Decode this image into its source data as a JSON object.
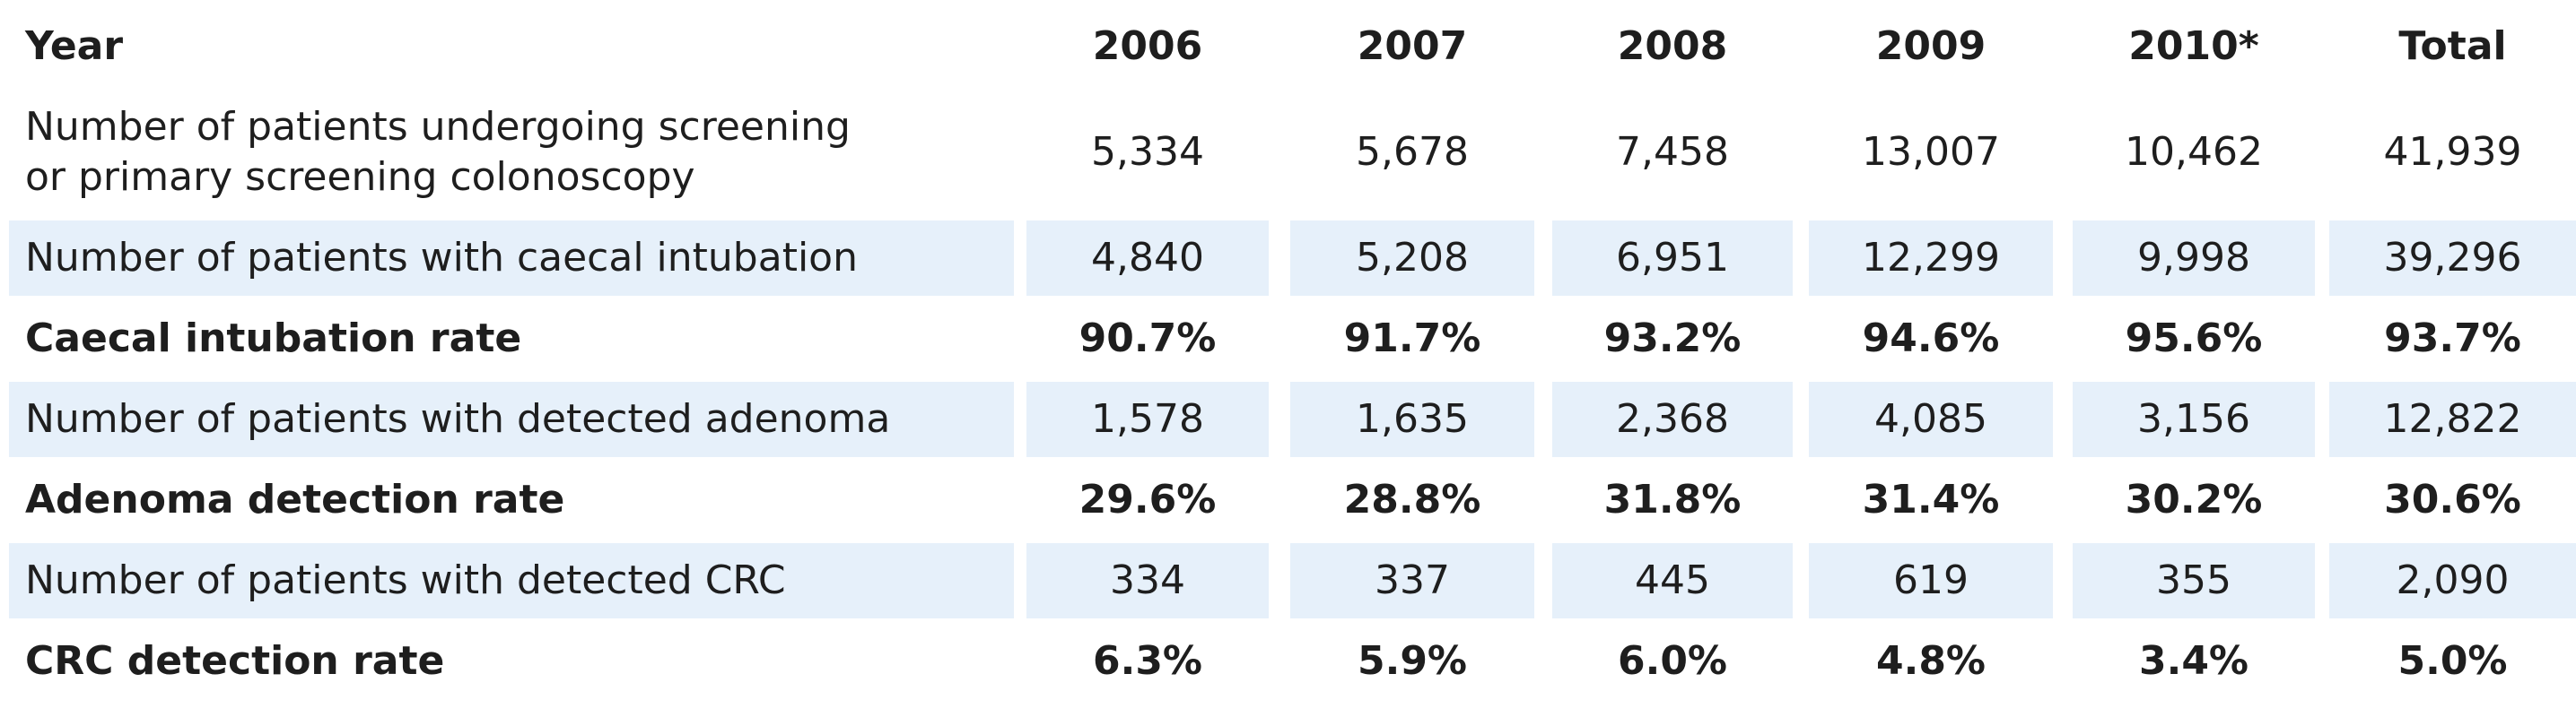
{
  "table": {
    "header": {
      "label": "Year",
      "years": [
        "2006",
        "2007",
        "2008",
        "2009",
        "2010*",
        "Total"
      ]
    },
    "rows": [
      {
        "label": "Number of patients undergoing screening\nor primary screening colonoscopy",
        "values": [
          "5,334",
          "5,678",
          "7,458",
          "13,007",
          "10,462",
          "41,939"
        ]
      },
      {
        "label": "Number of patients with caecal intubation",
        "values": [
          "4,840",
          "5,208",
          "6,951",
          "12,299",
          "9,998",
          "39,296"
        ]
      },
      {
        "label": "Caecal intubation rate",
        "values": [
          "90.7%",
          "91.7%",
          "93.2%",
          "94.6%",
          "95.6%",
          "93.7%"
        ]
      },
      {
        "label": "Number of patients with detected adenoma",
        "values": [
          "1,578",
          "1,635",
          "2,368",
          "4,085",
          "3,156",
          "12,822"
        ]
      },
      {
        "label": "Adenoma detection rate",
        "values": [
          "29.6%",
          "28.8%",
          "31.8%",
          "31.4%",
          "30.2%",
          "30.6%"
        ]
      },
      {
        "label": "Number of patients with detected CRC",
        "values": [
          "334",
          "337",
          "445",
          "619",
          "355",
          "2,090"
        ]
      },
      {
        "label": "CRC detection rate",
        "values": [
          "6.3%",
          "5.9%",
          "6.0%",
          "4.8%",
          "3.4%",
          "5.0%"
        ]
      }
    ]
  },
  "colors": {
    "shaded_row": "#e6f0fa",
    "text": "#1e1e1e"
  }
}
